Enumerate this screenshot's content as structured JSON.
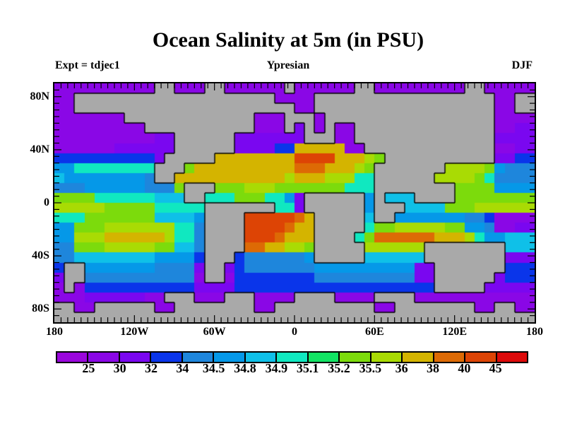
{
  "title": "Ocean Salinity at 5m (in PSU)",
  "annotations": {
    "experiment": "Expt = tdjec1",
    "era": "Ypresian",
    "season": "DJF"
  },
  "axes": {
    "lat_labels": [
      {
        "text": "80N",
        "lat": 80
      },
      {
        "text": "40N",
        "lat": 40
      },
      {
        "text": "0",
        "lat": 0
      },
      {
        "text": "40S",
        "lat": -40
      },
      {
        "text": "80S",
        "lat": -80
      }
    ],
    "lon_labels": [
      {
        "text": "180",
        "lon": -180
      },
      {
        "text": "120W",
        "lon": -120
      },
      {
        "text": "60W",
        "lon": -60
      },
      {
        "text": "0",
        "lon": 0
      },
      {
        "text": "60E",
        "lon": 60
      },
      {
        "text": "120E",
        "lon": 120
      },
      {
        "text": "180",
        "lon": 180
      }
    ],
    "tick_interval_deg": 5
  },
  "colorbar": {
    "tick_labels": [
      "25",
      "30",
      "32",
      "34",
      "34.5",
      "34.8",
      "34.9",
      "35.1",
      "35.2",
      "35.5",
      "36",
      "38",
      "40",
      "45"
    ]
  },
  "chart_data": {
    "type": "heatmap",
    "title": "Ocean Salinity at 5m (in PSU)",
    "units": "PSU",
    "level_boundaries": [
      25,
      30,
      32,
      34,
      34.5,
      34.8,
      34.9,
      35.1,
      35.2,
      35.5,
      36,
      38,
      40,
      45
    ],
    "palette": [
      "#9A07DC",
      "#8A07E6",
      "#7A07F0",
      "#0A35EA",
      "#1E86DC",
      "#0598E8",
      "#0FC0E8",
      "#10E8C0",
      "#12E363",
      "#7CDB0C",
      "#A9DB04",
      "#D4B400",
      "#DD6A05",
      "#DD4405",
      "#DD0A0A"
    ],
    "land_color": "#A9A9A9",
    "coastline_color": "#000000",
    "lon_range": [
      -180,
      180
    ],
    "lat_range": [
      90,
      -90
    ],
    "grid_cols": 48,
    "grid_rows": 24,
    "grid_legend": {
      ".": "land",
      "a": "<25",
      "b": "25-30",
      "c": "30-32",
      "d": "32-34",
      "e": "34-34.5",
      "f": "34.5-34.8",
      "g": "34.8-34.9",
      "h": "34.9-35.1",
      "i": "35.1-35.2",
      "j": "35.2-35.5",
      "k": "35.5-36",
      "l": "36-38",
      "m": "38-40",
      "n": "40-45",
      "o": ">45"
    },
    "grid": [
      "bbbbbbbbbb..bbb..bbbbbb.bbbbbb..bbbbbbbbb..bbbbb",
      "bb....................bbbb..................bb..",
      "bb......................bb..................bb..",
      "bbbbbbb.............bbb...b.................bbbb",
      "bbbbbbbbb...........bbb.c.b.bb..............bbcc",
      "bbbbbbbbbbcc......ccccccc...bb..............cccc",
      "bbbbbbcccccc......ccccddlllllbb.............bbcc",
      "ddddddddddc.....llllllllnnnnlllkj...........ccdd",
      "ffhhhhhhhh...jllllllllllmmmlllkj.......kkkkjfeee",
      "gffffffffe..lllllllllllklllkkkhh......kkkkjheeee",
      "eeeffffffeeej...jjjkkkjjjjjjjhhh........jjjjffff",
      "jjjjhhhhhhggg..hhhjjjhhfc......f.ggg....jjjjjjjj",
      "kkkkkjjjjjhhhhh.......hhc......f...ggggjjjkkkkkk",
      "hhhjjjjjjjggggf....nnnnnml.....g..fffffffeedbbbb",
      "ffjjjkkkkkkkhhe....nnnnmll.....hjjkkkkkjjffebbcc",
      "ffkkkllllllkhhe....nnnmlll....hjmmmmmmlllkhffggg",
      "eejjjkkkkkjjgge....mmllkkj.....kkkkkk........ggg",
      "eeggggggggffffd...deeeeeef.....gggggg........ccc",
      "d..fffffffeeeec..cdeeeeeeeffffffffffcc.......ddd",
      "c..eeeeeeeeeeeb..bddddddddeeeeeeeeeecc......cddd",
      "b.bdddddddddddccccdddddddddddddddddddd.....ccccc",
      "bbbccccccbb...bbb...bbbb....bbbb....bbbbbbbbbbbb",
      "..bb......bb........bb..........bb........bb..bb",
      "................................................"
    ]
  }
}
